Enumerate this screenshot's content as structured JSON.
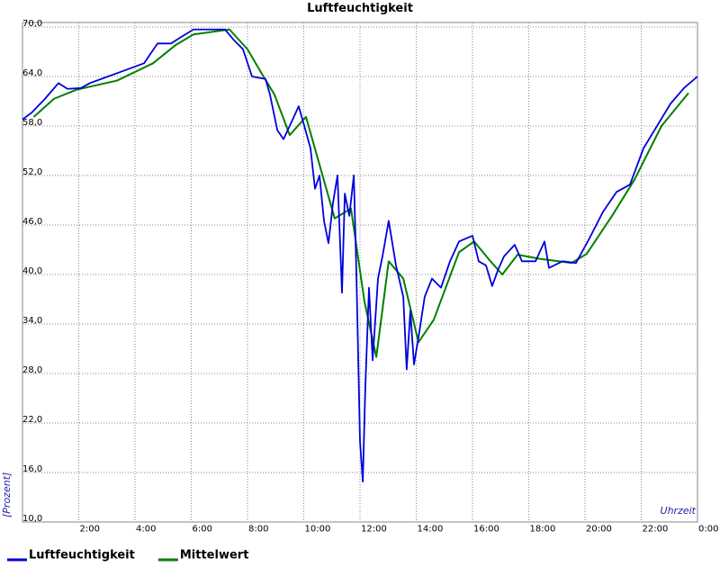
{
  "chart_data": {
    "type": "line",
    "title": "Luftfeuchtigkeit",
    "y_label": "[Prozent]",
    "x_label": "Uhrzeit",
    "xlim": [
      0,
      24
    ],
    "ylim": [
      10,
      70
    ],
    "grid": true,
    "legend": "bottom-left",
    "xticks": [
      {
        "value": 2,
        "label": "2:00"
      },
      {
        "value": 4,
        "label": "4:00"
      },
      {
        "value": 6,
        "label": "6:00"
      },
      {
        "value": 8,
        "label": "8:00"
      },
      {
        "value": 10,
        "label": "10:00"
      },
      {
        "value": 12,
        "label": "12:00"
      },
      {
        "value": 14,
        "label": "14:00"
      },
      {
        "value": 16,
        "label": "16:00"
      },
      {
        "value": 18,
        "label": "18:00"
      },
      {
        "value": 20,
        "label": "20:00"
      },
      {
        "value": 22,
        "label": "22:00"
      },
      {
        "value": 24,
        "label": "0:00"
      }
    ],
    "yticks": [
      {
        "value": 10,
        "label": "10,0"
      },
      {
        "value": 16,
        "label": "16,0"
      },
      {
        "value": 22,
        "label": "22,0"
      },
      {
        "value": 28,
        "label": "28,0"
      },
      {
        "value": 34,
        "label": "34,0"
      },
      {
        "value": 40,
        "label": "40,0"
      },
      {
        "value": 46,
        "label": "46,0"
      },
      {
        "value": 52,
        "label": "52,0"
      },
      {
        "value": 58,
        "label": "58,0"
      },
      {
        "value": 64,
        "label": "64,0"
      },
      {
        "value": 70,
        "label": "70,0"
      }
    ],
    "series": [
      {
        "name": "Luftfeuchtigkeit",
        "color": "#0000dd",
        "x": [
          0,
          0.32,
          0.8,
          1.28,
          1.6,
          2.08,
          2.4,
          3.04,
          3.68,
          4.32,
          4.8,
          5.28,
          5.6,
          6.08,
          6.72,
          7.2,
          7.52,
          7.84,
          8.16,
          8.64,
          8.8,
          9.06,
          9.28,
          9.5,
          9.82,
          10.02,
          10.24,
          10.4,
          10.56,
          10.72,
          10.88,
          11.04,
          11.2,
          11.36,
          11.46,
          11.62,
          11.78,
          11.87,
          12.0,
          12.1,
          12.19,
          12.32,
          12.45,
          12.64,
          12.8,
          13.02,
          13.28,
          13.54,
          13.66,
          13.79,
          13.92,
          14.08,
          14.3,
          14.56,
          14.88,
          15.2,
          15.52,
          16.0,
          16.22,
          16.48,
          16.7,
          16.9,
          17.12,
          17.5,
          17.76,
          18.24,
          18.56,
          18.72,
          19.2,
          19.68,
          20.16,
          20.64,
          21.12,
          21.6,
          22.08,
          22.56,
          23.04,
          23.52,
          24.0
        ],
        "values": [
          58.8,
          59.6,
          61.3,
          63.2,
          62.5,
          62.6,
          63.2,
          64.0,
          64.8,
          65.6,
          68.0,
          68.0,
          68.7,
          69.7,
          69.7,
          69.7,
          68.4,
          67.3,
          64.0,
          63.7,
          61.8,
          57.5,
          56.4,
          58.0,
          60.4,
          58.0,
          55.3,
          50.4,
          52.0,
          46.5,
          43.8,
          48.7,
          52.0,
          37.8,
          49.8,
          47.1,
          52.0,
          40.5,
          19.8,
          14.9,
          26.4,
          38.4,
          29.6,
          39.5,
          42.2,
          46.5,
          41.1,
          37.3,
          28.5,
          35.6,
          29.1,
          32.4,
          37.3,
          39.5,
          38.4,
          41.6,
          44.0,
          44.7,
          41.6,
          41.1,
          38.6,
          40.5,
          42.2,
          43.6,
          41.6,
          41.6,
          44.0,
          40.8,
          41.6,
          41.4,
          44.4,
          47.6,
          50.0,
          50.9,
          55.3,
          58.0,
          60.7,
          62.6,
          64.0
        ]
      },
      {
        "name": "Mittelwert",
        "color": "#008000",
        "x": [
          0.4,
          1.12,
          1.92,
          3.36,
          4.64,
          5.44,
          6.08,
          7.36,
          8.0,
          8.48,
          8.96,
          9.5,
          10.08,
          11.1,
          11.68,
          12.16,
          12.58,
          13.02,
          13.54,
          14.08,
          14.62,
          15.52,
          16.06,
          16.64,
          17.06,
          17.6,
          18.4,
          19.52,
          20.06,
          20.96,
          21.76,
          22.72,
          23.68
        ],
        "values": [
          59.1,
          61.3,
          62.4,
          63.5,
          65.6,
          67.8,
          69.1,
          69.7,
          67.3,
          64.5,
          61.8,
          56.9,
          59.1,
          46.8,
          48.0,
          36.7,
          30.0,
          41.6,
          39.5,
          31.8,
          34.5,
          42.7,
          44.0,
          41.6,
          40.0,
          42.4,
          41.9,
          41.4,
          42.5,
          47.1,
          51.5,
          58.0,
          62.0
        ]
      }
    ]
  }
}
